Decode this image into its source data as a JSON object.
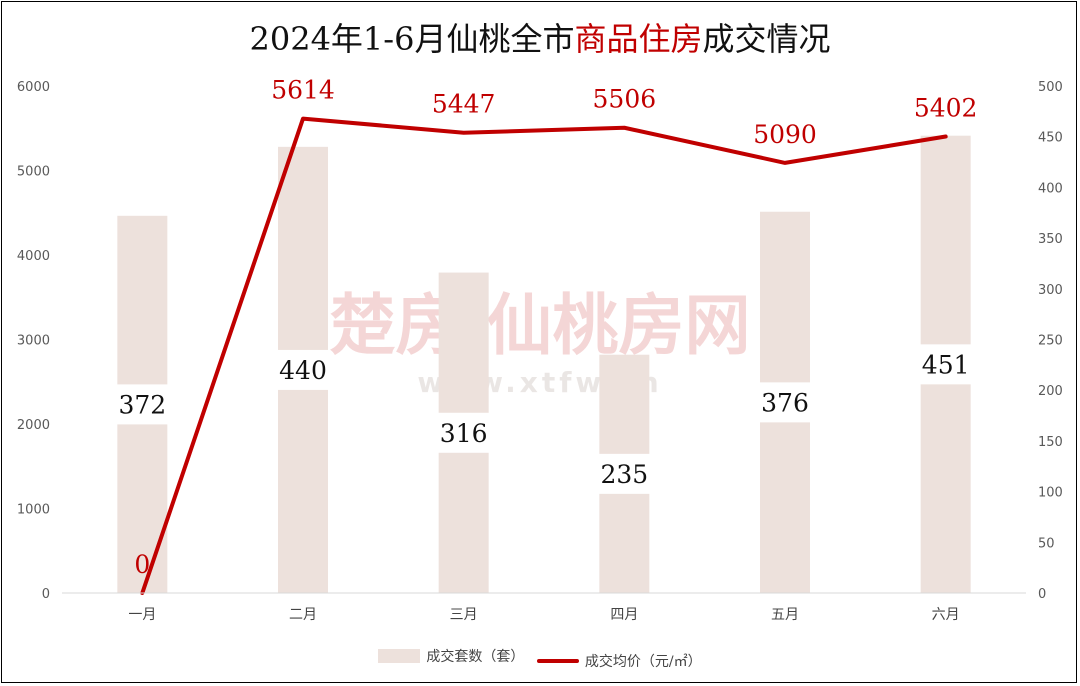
{
  "title": {
    "part1": "2024年1-6月仙桃全市",
    "part2": "商品住房",
    "part3": "成交情况"
  },
  "watermark": {
    "line1": "楚房·仙桃房网",
    "line2": "www.xtfw.cn"
  },
  "legend": {
    "bars": "成交套数（套）",
    "line": "成交均价（元/㎡）"
  },
  "colors": {
    "bar": "#ede1dc",
    "line": "#c00000",
    "label_bar": "#111111",
    "label_line": "#c00000"
  },
  "chart_data": {
    "type": "bar",
    "categories": [
      "一月",
      "二月",
      "三月",
      "四月",
      "五月",
      "六月"
    ],
    "series": [
      {
        "name": "成交套数（套）",
        "type": "bar",
        "axis": "right",
        "values": [
          372,
          440,
          316,
          235,
          376,
          451
        ]
      },
      {
        "name": "成交均价（元/㎡）",
        "type": "line",
        "axis": "left",
        "values": [
          0,
          5614,
          5447,
          5506,
          5090,
          5402
        ]
      }
    ],
    "left_axis": {
      "min": 0,
      "max": 6000,
      "ticks": [
        0,
        1000,
        2000,
        3000,
        4000,
        5000,
        6000
      ]
    },
    "right_axis": {
      "min": 0,
      "max": 500,
      "ticks": [
        0,
        50,
        100,
        150,
        200,
        250,
        300,
        350,
        400,
        450,
        500
      ]
    },
    "grid": false,
    "legend_position": "bottom"
  }
}
